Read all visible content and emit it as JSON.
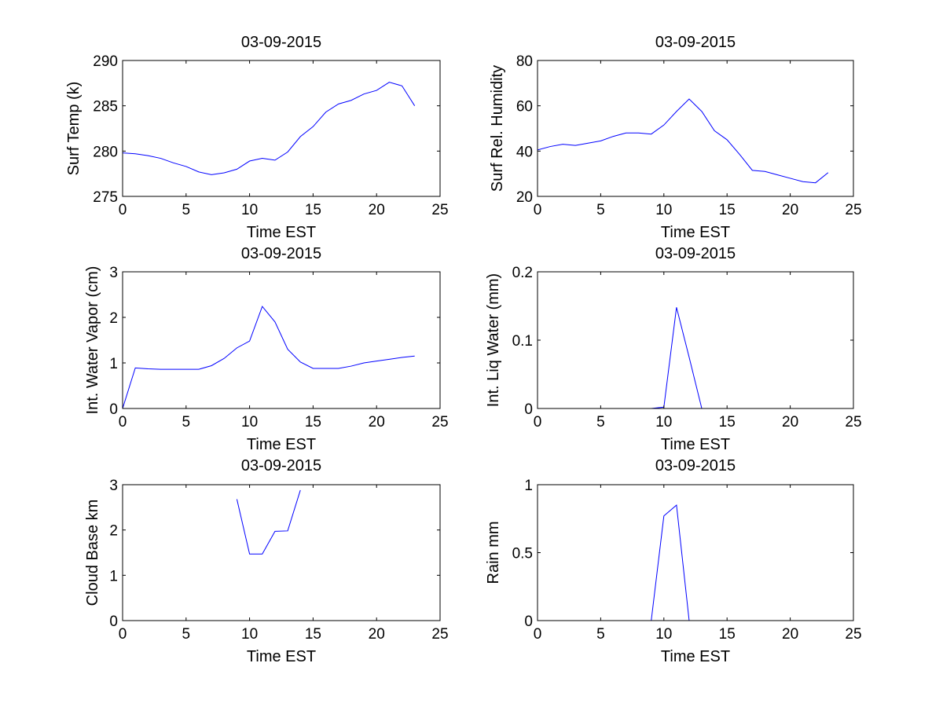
{
  "figure": {
    "background": "#ffffff",
    "line_color": "#0000ff",
    "axis_color": "#000000"
  },
  "chart_data": [
    {
      "type": "line",
      "title": "03-09-2015",
      "xlabel": "Time EST",
      "ylabel": "Surf Temp (k)",
      "xlim": [
        0,
        25
      ],
      "ylim": [
        275,
        290
      ],
      "xticks": [
        0,
        5,
        10,
        15,
        20,
        25
      ],
      "yticks": [
        275,
        280,
        285,
        290
      ],
      "ytick_labels": [
        "275",
        "280",
        "285",
        "290"
      ],
      "grid": false,
      "series": [
        {
          "x": [
            0,
            1,
            2,
            3,
            4,
            5,
            6,
            7,
            8,
            9,
            10,
            11,
            12,
            13,
            14,
            15,
            16,
            17,
            18,
            19,
            20,
            21,
            22,
            23
          ],
          "y": [
            279.8,
            279.7,
            279.5,
            279.2,
            278.7,
            278.3,
            277.7,
            277.4,
            277.6,
            278.0,
            278.9,
            279.2,
            279.0,
            279.9,
            281.6,
            282.7,
            284.3,
            285.2,
            285.6,
            286.3,
            286.7,
            287.6,
            287.2,
            285.0
          ]
        }
      ]
    },
    {
      "type": "line",
      "title": "03-09-2015",
      "xlabel": "Time EST",
      "ylabel": "Surf Rel. Humidity",
      "xlim": [
        0,
        25
      ],
      "ylim": [
        20,
        80
      ],
      "xticks": [
        0,
        5,
        10,
        15,
        20,
        25
      ],
      "yticks": [
        20,
        40,
        60,
        80
      ],
      "ytick_labels": [
        "20",
        "40",
        "60",
        "80"
      ],
      "grid": false,
      "series": [
        {
          "x": [
            0,
            1,
            2,
            3,
            4,
            5,
            6,
            7,
            8,
            9,
            10,
            11,
            12,
            13,
            14,
            15,
            16,
            17,
            18,
            19,
            20,
            21,
            22,
            23
          ],
          "y": [
            40.5,
            42,
            43,
            42.5,
            43.5,
            44.5,
            46.5,
            48,
            48,
            47.5,
            51.5,
            57.5,
            63,
            57.5,
            49,
            45,
            38.5,
            31.5,
            31,
            29.5,
            28,
            26.5,
            26,
            30.5
          ]
        }
      ]
    },
    {
      "type": "line",
      "title": "03-09-2015",
      "xlabel": "Time EST",
      "ylabel": "Int. Water Vapor (cm)",
      "xlim": [
        0,
        25
      ],
      "ylim": [
        0,
        3
      ],
      "xticks": [
        0,
        5,
        10,
        15,
        20,
        25
      ],
      "yticks": [
        0,
        1,
        2,
        3
      ],
      "ytick_labels": [
        "0",
        "1",
        "2",
        "3"
      ],
      "grid": false,
      "series": [
        {
          "x": [
            0,
            1,
            2,
            3,
            4,
            5,
            6,
            7,
            8,
            9,
            10,
            11,
            12,
            13,
            14,
            15,
            16,
            17,
            18,
            19,
            20,
            21,
            22,
            23
          ],
          "y": [
            0.0,
            0.89,
            0.87,
            0.86,
            0.86,
            0.86,
            0.86,
            0.94,
            1.1,
            1.33,
            1.48,
            2.24,
            1.9,
            1.3,
            1.02,
            0.88,
            0.88,
            0.88,
            0.93,
            1.0,
            1.04,
            1.08,
            1.12,
            1.15
          ]
        }
      ]
    },
    {
      "type": "line",
      "title": "03-09-2015",
      "xlabel": "Time EST",
      "ylabel": "Int. Liq Water (mm)",
      "xlim": [
        0,
        25
      ],
      "ylim": [
        0,
        0.2
      ],
      "xticks": [
        0,
        5,
        10,
        15,
        20,
        25
      ],
      "yticks": [
        0,
        0.1,
        0.2
      ],
      "ytick_labels": [
        "0",
        "0.1",
        "0.2"
      ],
      "grid": false,
      "series": [
        {
          "x": [
            0,
            1,
            2,
            3,
            4,
            5,
            6,
            7,
            8,
            9,
            10,
            11,
            12,
            13,
            14,
            15,
            16,
            17,
            18,
            19,
            20,
            21,
            22,
            23
          ],
          "y": [
            0,
            0,
            0,
            0,
            0,
            0,
            0,
            0,
            0,
            0,
            0.002,
            0.148,
            0.075,
            0,
            0,
            0,
            0,
            0,
            0,
            0,
            0,
            0,
            0,
            0
          ]
        }
      ]
    },
    {
      "type": "line",
      "title": "03-09-2015",
      "xlabel": "Time EST",
      "ylabel": "Cloud Base km",
      "xlim": [
        0,
        25
      ],
      "ylim": [
        0,
        3
      ],
      "xticks": [
        0,
        5,
        10,
        15,
        20,
        25
      ],
      "yticks": [
        0,
        1,
        2,
        3
      ],
      "ytick_labels": [
        "0",
        "1",
        "2",
        "3"
      ],
      "grid": false,
      "series": [
        {
          "x": [
            9,
            10,
            11,
            12,
            13,
            14
          ],
          "y": [
            2.68,
            1.47,
            1.47,
            1.97,
            1.98,
            2.88
          ]
        }
      ]
    },
    {
      "type": "line",
      "title": "03-09-2015",
      "xlabel": "Time EST",
      "ylabel": "Rain mm",
      "xlim": [
        0,
        25
      ],
      "ylim": [
        0,
        1
      ],
      "xticks": [
        0,
        5,
        10,
        15,
        20,
        25
      ],
      "yticks": [
        0,
        0.5,
        1
      ],
      "ytick_labels": [
        "0",
        "0.5",
        "1"
      ],
      "grid": false,
      "series": [
        {
          "x": [
            8.6,
            9,
            10,
            11,
            12,
            12.4
          ],
          "y": [
            -0.1,
            0,
            0.77,
            0.85,
            0,
            -0.1
          ]
        }
      ]
    }
  ]
}
